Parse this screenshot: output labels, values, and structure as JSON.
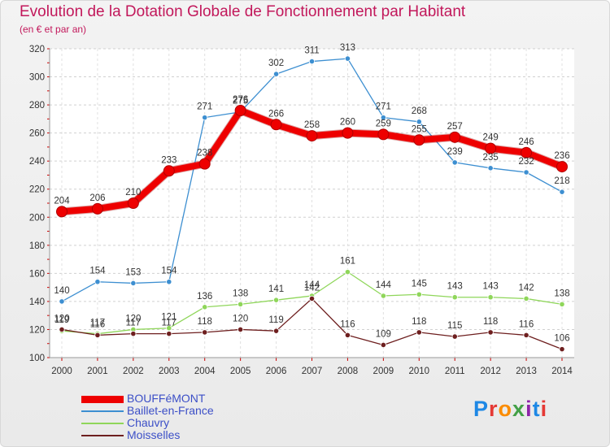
{
  "title": "Evolution de la Dotation Globale de Fonctionnement par Habitant",
  "subtitle": "(en € et par an)",
  "logo": "Proxiti",
  "chart_data": {
    "type": "line",
    "x": [
      "2000",
      "2001",
      "2002",
      "2003",
      "2004",
      "2005",
      "2006",
      "2007",
      "2008",
      "2009",
      "2010",
      "2011",
      "2012",
      "2013",
      "2014"
    ],
    "ylim": [
      100,
      320
    ],
    "yticks": [
      100,
      120,
      140,
      160,
      180,
      200,
      220,
      240,
      260,
      280,
      300,
      320
    ],
    "grid": true,
    "legend_position": "bottom-left",
    "series": [
      {
        "name": "BOUFFéMONT",
        "color": "#ee0000",
        "values": [
          204,
          206,
          210,
          233,
          238,
          276,
          266,
          258,
          260,
          259,
          255,
          257,
          249,
          246,
          236
        ]
      },
      {
        "name": "Baillet-en-France",
        "color": "#3d8fd1",
        "values": [
          140,
          154,
          153,
          154,
          271,
          275,
          302,
          311,
          313,
          271,
          268,
          239,
          235,
          232,
          218
        ]
      },
      {
        "name": "Chauvry",
        "color": "#8fd65a",
        "values": [
          119,
          117,
          120,
          121,
          136,
          138,
          141,
          144,
          161,
          144,
          145,
          143,
          143,
          142,
          138
        ]
      },
      {
        "name": "Moisselles",
        "color": "#6e1f1f",
        "values": [
          120,
          116,
          117,
          117,
          118,
          120,
          119,
          142,
          116,
          109,
          118,
          115,
          118,
          116,
          106
        ]
      }
    ]
  }
}
